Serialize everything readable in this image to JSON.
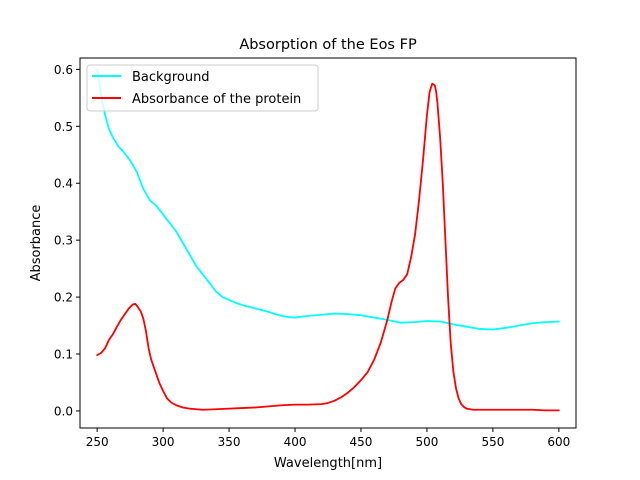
{
  "chart_data": {
    "type": "line",
    "title": "Absorption of the Eos FP",
    "xlabel": "Wavelength[nm]",
    "ylabel": "Absorbance",
    "xlim": [
      237,
      613
    ],
    "ylim": [
      -0.03,
      0.62
    ],
    "xticks": [
      250,
      300,
      350,
      400,
      450,
      500,
      550,
      600
    ],
    "yticks": [
      0.0,
      0.1,
      0.2,
      0.3,
      0.4,
      0.5,
      0.6
    ],
    "xtick_labels": [
      "250",
      "300",
      "350",
      "400",
      "450",
      "500",
      "550",
      "600"
    ],
    "ytick_labels": [
      "0.0",
      "0.1",
      "0.2",
      "0.3",
      "0.4",
      "0.5",
      "0.6"
    ],
    "grid": false,
    "legend_position": "upper left",
    "series": [
      {
        "name": "Background",
        "color": "#00ffff",
        "x": [
          250,
          253,
          256,
          259,
          262,
          266,
          270,
          275,
          280,
          285,
          290,
          295,
          300,
          305,
          310,
          315,
          320,
          325,
          330,
          335,
          340,
          345,
          350,
          355,
          360,
          365,
          370,
          375,
          380,
          385,
          390,
          395,
          400,
          410,
          420,
          430,
          440,
          450,
          460,
          470,
          480,
          490,
          500,
          510,
          520,
          530,
          540,
          550,
          560,
          570,
          580,
          590,
          600
        ],
        "y": [
          0.6,
          0.555,
          0.52,
          0.495,
          0.48,
          0.465,
          0.455,
          0.44,
          0.42,
          0.39,
          0.37,
          0.36,
          0.345,
          0.33,
          0.315,
          0.295,
          0.275,
          0.255,
          0.24,
          0.225,
          0.21,
          0.2,
          0.195,
          0.19,
          0.186,
          0.183,
          0.18,
          0.177,
          0.174,
          0.17,
          0.167,
          0.165,
          0.164,
          0.167,
          0.169,
          0.171,
          0.17,
          0.168,
          0.164,
          0.16,
          0.155,
          0.156,
          0.158,
          0.157,
          0.152,
          0.148,
          0.144,
          0.143,
          0.146,
          0.15,
          0.154,
          0.156,
          0.157
        ]
      },
      {
        "name": "Absorbance of the protein",
        "color": "#ff0000",
        "x": [
          250,
          253,
          256,
          259,
          262,
          265,
          268,
          271,
          274,
          277,
          279,
          281,
          283,
          285,
          287,
          289,
          291,
          294,
          297,
          300,
          303,
          306,
          310,
          315,
          320,
          325,
          330,
          340,
          350,
          360,
          370,
          380,
          390,
          400,
          410,
          420,
          425,
          430,
          435,
          440,
          445,
          450,
          455,
          460,
          465,
          470,
          473,
          476,
          479,
          482,
          485,
          488,
          491,
          494,
          497,
          500,
          502,
          504,
          506,
          507,
          508,
          510,
          512,
          514,
          516,
          518,
          520,
          522,
          524,
          526,
          528,
          530,
          535,
          540,
          550,
          560,
          570,
          580,
          590,
          600
        ],
        "y": [
          0.098,
          0.102,
          0.11,
          0.125,
          0.135,
          0.148,
          0.16,
          0.17,
          0.18,
          0.187,
          0.188,
          0.182,
          0.175,
          0.162,
          0.14,
          0.11,
          0.09,
          0.07,
          0.05,
          0.035,
          0.022,
          0.015,
          0.01,
          0.006,
          0.004,
          0.003,
          0.002,
          0.003,
          0.004,
          0.005,
          0.006,
          0.008,
          0.01,
          0.011,
          0.011,
          0.012,
          0.014,
          0.018,
          0.024,
          0.032,
          0.042,
          0.054,
          0.068,
          0.09,
          0.12,
          0.16,
          0.19,
          0.215,
          0.225,
          0.23,
          0.24,
          0.27,
          0.31,
          0.37,
          0.44,
          0.52,
          0.56,
          0.575,
          0.572,
          0.56,
          0.54,
          0.48,
          0.4,
          0.3,
          0.2,
          0.12,
          0.07,
          0.04,
          0.022,
          0.012,
          0.007,
          0.004,
          0.002,
          0.002,
          0.002,
          0.002,
          0.002,
          0.002,
          0.001,
          0.001
        ]
      }
    ]
  }
}
